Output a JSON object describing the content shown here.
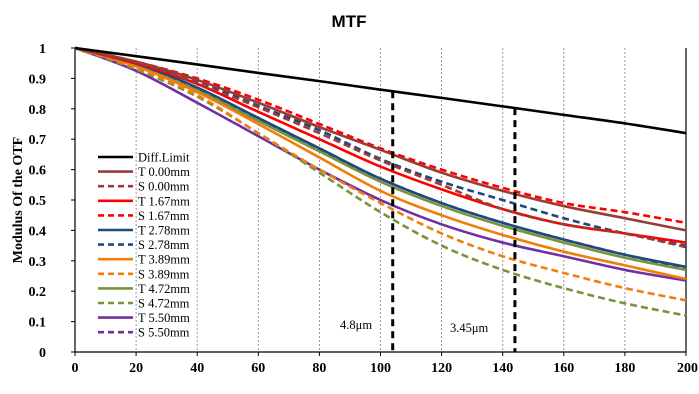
{
  "chart_data": {
    "type": "line",
    "title": "MTF",
    "xlabel": "",
    "ylabel": "Modulus Of  the OTF",
    "xlim": [
      0,
      200
    ],
    "ylim": [
      0,
      1
    ],
    "x_ticks": [
      "0",
      "20",
      "40",
      "60",
      "80",
      "100",
      "120",
      "140",
      "160",
      "180",
      "200"
    ],
    "y_ticks": [
      "0",
      "0.1",
      "0.2",
      "0.3",
      "0.4",
      "0.5",
      "0.6",
      "0.7",
      "0.8",
      "0.9",
      "1"
    ],
    "grid": "vertical dashed",
    "legend_position": "left-middle",
    "x": [
      0,
      20,
      40,
      60,
      80,
      100,
      120,
      140,
      160,
      180,
      200
    ],
    "series": [
      {
        "name": "Diff.Limit",
        "color": "#000000",
        "dash": "solid",
        "values": [
          1.0,
          0.973,
          0.946,
          0.918,
          0.891,
          0.863,
          0.836,
          0.808,
          0.78,
          0.752,
          0.72
        ]
      },
      {
        "name": "T 0.00mm",
        "color": "#9B3B35",
        "dash": "solid",
        "values": [
          1.0,
          0.955,
          0.895,
          0.82,
          0.74,
          0.665,
          0.59,
          0.53,
          0.48,
          0.44,
          0.4
        ]
      },
      {
        "name": "S 0.00mm",
        "color": "#9B3B35",
        "dash": "dashed",
        "values": [
          1.0,
          0.953,
          0.885,
          0.805,
          0.72,
          0.63,
          0.55,
          0.47,
          0.42,
          0.39,
          0.345
        ]
      },
      {
        "name": "T 1.67mm",
        "color": "#FF0000",
        "dash": "solid",
        "values": [
          1.0,
          0.95,
          0.882,
          0.79,
          0.7,
          0.61,
          0.535,
          0.47,
          0.42,
          0.39,
          0.36
        ]
      },
      {
        "name": "S 1.67mm",
        "color": "#FF0000",
        "dash": "dashed",
        "values": [
          1.0,
          0.955,
          0.9,
          0.83,
          0.75,
          0.67,
          0.6,
          0.54,
          0.49,
          0.46,
          0.425
        ]
      },
      {
        "name": "T 2.78mm",
        "color": "#1F497D",
        "dash": "solid",
        "values": [
          1.0,
          0.948,
          0.87,
          0.77,
          0.67,
          0.57,
          0.49,
          0.425,
          0.37,
          0.32,
          0.28
        ]
      },
      {
        "name": "S 2.78mm",
        "color": "#1F497D",
        "dash": "dashed",
        "values": [
          1.0,
          0.953,
          0.89,
          0.81,
          0.73,
          0.635,
          0.56,
          0.5,
          0.44,
          0.39,
          0.35
        ]
      },
      {
        "name": "T 3.89mm",
        "color": "#F07F09",
        "dash": "solid",
        "values": [
          1.0,
          0.94,
          0.855,
          0.75,
          0.64,
          0.53,
          0.45,
          0.385,
          0.33,
          0.285,
          0.24
        ]
      },
      {
        "name": "S 3.89mm",
        "color": "#F07F09",
        "dash": "dashed",
        "values": [
          1.0,
          0.935,
          0.845,
          0.72,
          0.6,
          0.49,
          0.39,
          0.315,
          0.26,
          0.21,
          0.17
        ]
      },
      {
        "name": "T 4.72mm",
        "color": "#77933C",
        "dash": "solid",
        "values": [
          1.0,
          0.94,
          0.86,
          0.76,
          0.66,
          0.56,
          0.48,
          0.415,
          0.36,
          0.31,
          0.27
        ]
      },
      {
        "name": "S 4.72mm",
        "color": "#77933C",
        "dash": "dashed",
        "values": [
          1.0,
          0.93,
          0.84,
          0.72,
          0.59,
          0.46,
          0.35,
          0.27,
          0.21,
          0.16,
          0.12
        ]
      },
      {
        "name": "T 5.50mm",
        "color": "#7030A0",
        "dash": "solid",
        "values": [
          1.0,
          0.925,
          0.82,
          0.71,
          0.6,
          0.5,
          0.42,
          0.36,
          0.315,
          0.27,
          0.235
        ]
      },
      {
        "name": "S 5.50mm",
        "color": "#7030A0",
        "dash": "dashed",
        "values": [
          1.0,
          0.94,
          0.862,
          0.765,
          0.665,
          0.57,
          0.49,
          0.425,
          0.37,
          0.32,
          0.275
        ]
      }
    ],
    "annotations": [
      {
        "text": "4.8μm",
        "x": 104,
        "label_x": 92,
        "label_y": 0.075
      },
      {
        "text": "3.45μm",
        "x": 144,
        "label_x": 129,
        "label_y": 0.065
      }
    ]
  }
}
